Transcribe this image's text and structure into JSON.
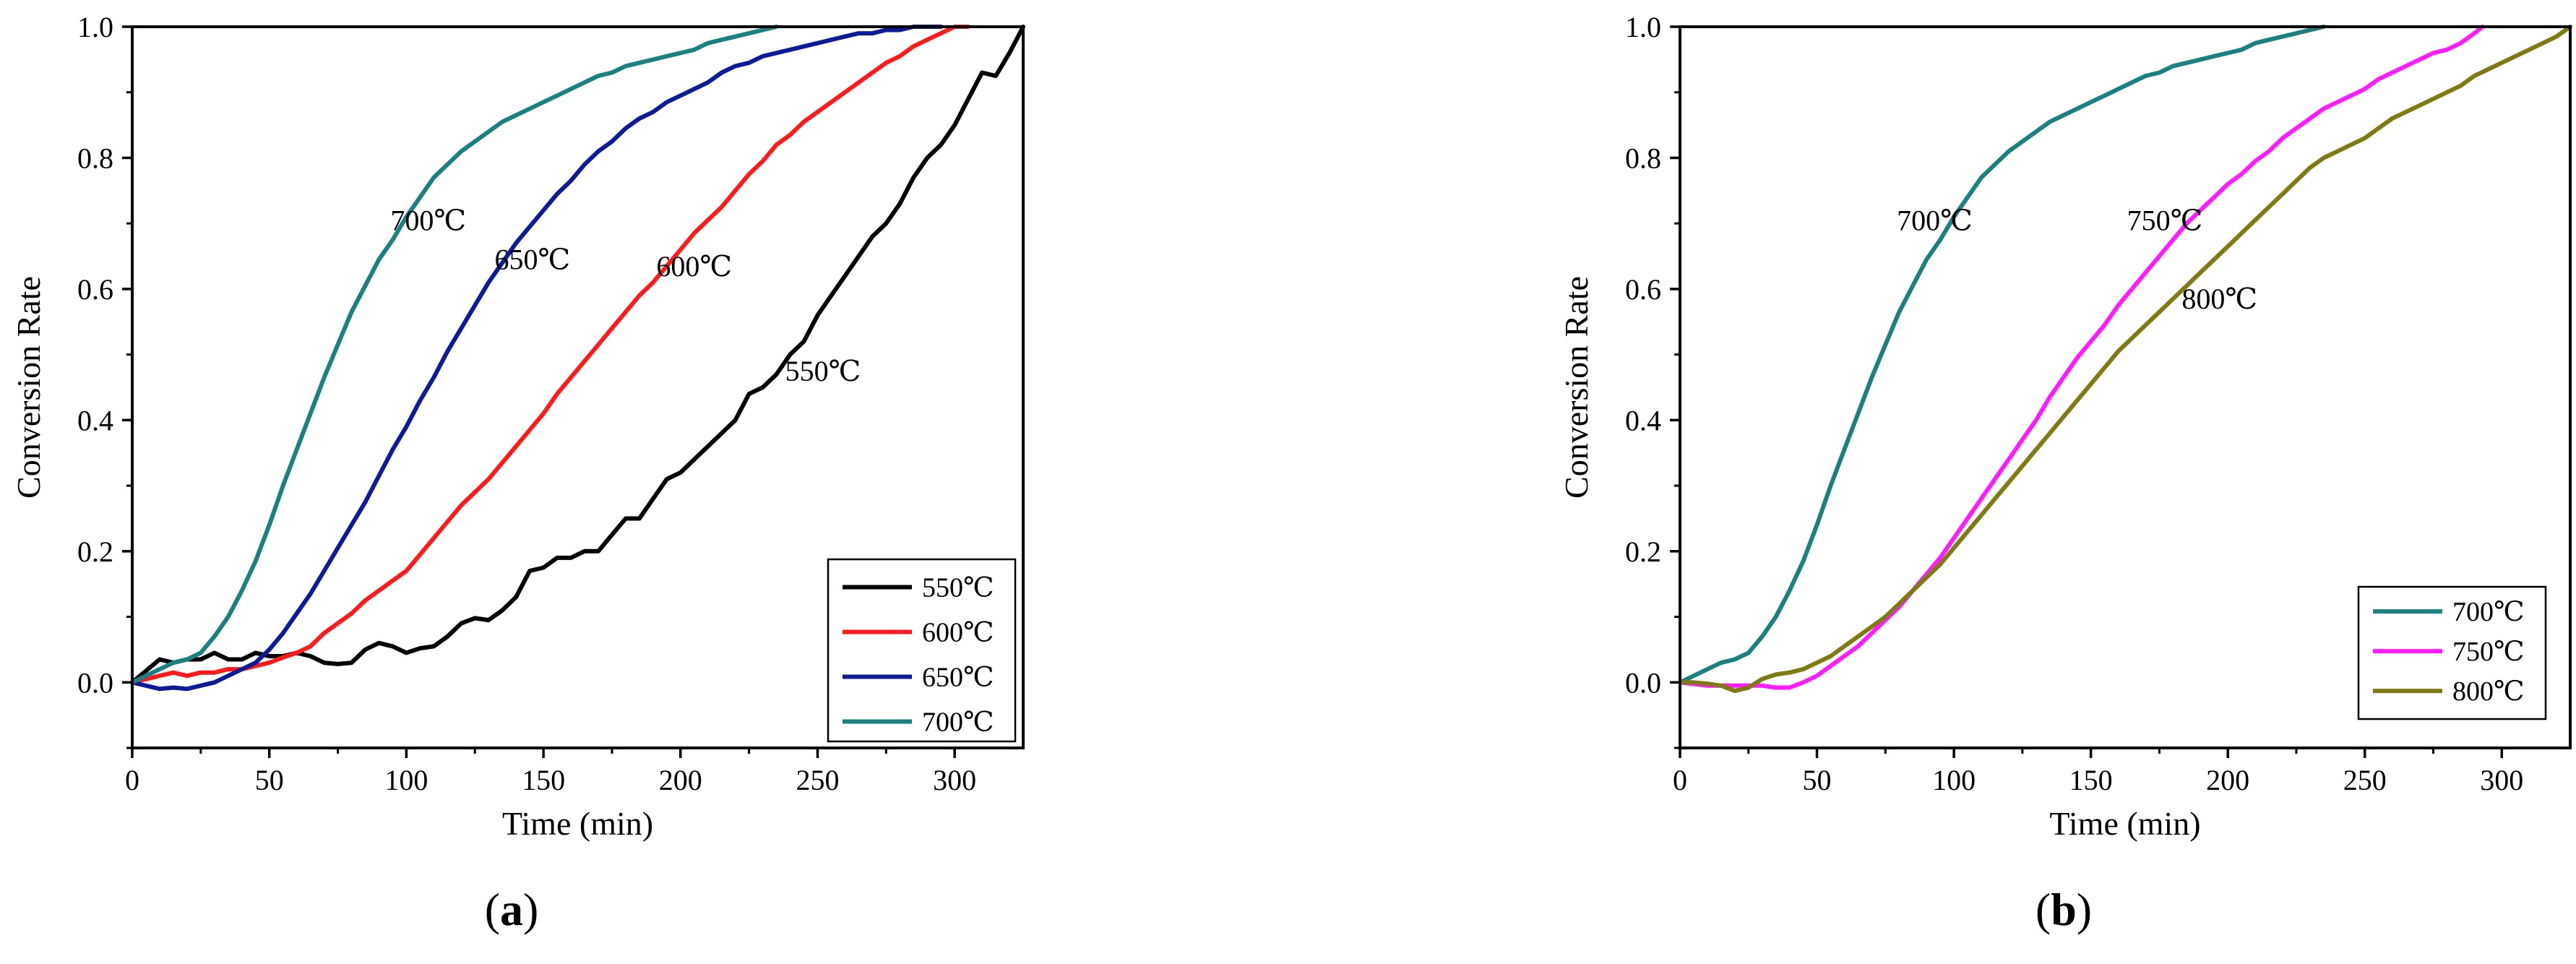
{
  "chart_data": [
    {
      "type": "line",
      "panel_label": "a",
      "title": "",
      "xlabel": "Time (min)",
      "ylabel": "Conversion Rate",
      "xlim": [
        0,
        325
      ],
      "ylim": [
        -0.1,
        1.0
      ],
      "xticks": [
        0,
        50,
        100,
        150,
        200,
        250,
        300
      ],
      "yticks": [
        0.0,
        0.2,
        0.4,
        0.6,
        0.8,
        1.0
      ],
      "xtick_labels": [
        "0",
        "50",
        "100",
        "150",
        "200",
        "250",
        "300"
      ],
      "ytick_labels": [
        "0.0",
        "0.2",
        "0.4",
        "0.6",
        "0.8",
        "1.0"
      ],
      "grid": false,
      "legend_position": "bottom-right",
      "series": [
        {
          "name": "550℃",
          "color": "#000000",
          "x": [
            0,
            10,
            15,
            20,
            25,
            30,
            35,
            40,
            45,
            50,
            55,
            60,
            65,
            70,
            75,
            80,
            85,
            90,
            95,
            100,
            105,
            110,
            115,
            120,
            125,
            130,
            135,
            140,
            145,
            150,
            155,
            160,
            165,
            170,
            175,
            180,
            185,
            190,
            195,
            200,
            205,
            210,
            215,
            220,
            225,
            230,
            235,
            240,
            245,
            250,
            255,
            260,
            265,
            270,
            275,
            280,
            285,
            290,
            295,
            300,
            305,
            310,
            315,
            320,
            325
          ],
          "y": [
            0.0,
            0.035,
            0.03,
            0.035,
            0.035,
            0.045,
            0.035,
            0.035,
            0.045,
            0.04,
            0.04,
            0.045,
            0.04,
            0.03,
            0.028,
            0.03,
            0.05,
            0.06,
            0.055,
            0.045,
            0.052,
            0.055,
            0.07,
            0.09,
            0.098,
            0.095,
            0.11,
            0.13,
            0.17,
            0.175,
            0.19,
            0.19,
            0.2,
            0.2,
            0.225,
            0.25,
            0.25,
            0.28,
            0.31,
            0.32,
            0.34,
            0.36,
            0.38,
            0.4,
            0.44,
            0.45,
            0.47,
            0.5,
            0.52,
            0.56,
            0.59,
            0.62,
            0.65,
            0.68,
            0.7,
            0.73,
            0.77,
            0.8,
            0.82,
            0.85,
            0.89,
            0.93,
            0.925,
            0.96,
            1.0
          ]
        },
        {
          "name": "600℃",
          "color": "#ff1a1a",
          "x": [
            0,
            10,
            15,
            20,
            25,
            30,
            35,
            40,
            45,
            50,
            55,
            60,
            65,
            70,
            75,
            80,
            85,
            90,
            95,
            100,
            105,
            110,
            115,
            120,
            125,
            130,
            135,
            140,
            145,
            150,
            155,
            160,
            165,
            170,
            175,
            180,
            185,
            190,
            195,
            200,
            205,
            210,
            215,
            220,
            225,
            230,
            235,
            240,
            245,
            250,
            255,
            260,
            265,
            270,
            275,
            280,
            285,
            290,
            295,
            300,
            305
          ],
          "y": [
            0.0,
            0.01,
            0.015,
            0.01,
            0.015,
            0.015,
            0.02,
            0.02,
            0.025,
            0.03,
            0.038,
            0.045,
            0.055,
            0.075,
            0.09,
            0.105,
            0.125,
            0.14,
            0.155,
            0.17,
            0.195,
            0.22,
            0.245,
            0.27,
            0.29,
            0.31,
            0.335,
            0.36,
            0.385,
            0.41,
            0.44,
            0.465,
            0.49,
            0.515,
            0.54,
            0.565,
            0.59,
            0.61,
            0.635,
            0.66,
            0.685,
            0.705,
            0.725,
            0.75,
            0.775,
            0.795,
            0.82,
            0.835,
            0.855,
            0.87,
            0.885,
            0.9,
            0.915,
            0.93,
            0.945,
            0.955,
            0.97,
            0.98,
            0.99,
            1.0,
            1.0
          ]
        },
        {
          "name": "650℃",
          "color": "#0d1a99",
          "x": [
            0,
            5,
            10,
            15,
            20,
            25,
            30,
            35,
            40,
            45,
            50,
            55,
            60,
            65,
            70,
            75,
            80,
            85,
            90,
            95,
            100,
            105,
            110,
            115,
            120,
            125,
            130,
            135,
            140,
            145,
            150,
            155,
            160,
            165,
            170,
            175,
            180,
            185,
            190,
            195,
            200,
            205,
            210,
            215,
            220,
            225,
            230,
            235,
            240,
            245,
            250,
            255,
            260,
            265,
            270,
            275,
            280,
            285,
            290,
            295
          ],
          "y": [
            0.0,
            -0.005,
            -0.01,
            -0.008,
            -0.01,
            -0.005,
            0.0,
            0.01,
            0.02,
            0.03,
            0.05,
            0.075,
            0.105,
            0.135,
            0.17,
            0.205,
            0.24,
            0.275,
            0.315,
            0.355,
            0.39,
            0.43,
            0.465,
            0.505,
            0.54,
            0.575,
            0.61,
            0.64,
            0.67,
            0.695,
            0.72,
            0.745,
            0.765,
            0.79,
            0.81,
            0.825,
            0.845,
            0.86,
            0.87,
            0.885,
            0.895,
            0.905,
            0.915,
            0.93,
            0.94,
            0.945,
            0.955,
            0.96,
            0.965,
            0.97,
            0.975,
            0.98,
            0.985,
            0.99,
            0.99,
            0.995,
            0.995,
            1.0,
            1.0,
            1.0
          ]
        },
        {
          "name": "700℃",
          "color": "#1a8080",
          "x": [
            0,
            5,
            10,
            15,
            20,
            25,
            30,
            35,
            40,
            45,
            50,
            55,
            60,
            65,
            70,
            75,
            80,
            85,
            90,
            95,
            100,
            105,
            110,
            115,
            120,
            125,
            130,
            135,
            140,
            145,
            150,
            155,
            160,
            165,
            170,
            175,
            180,
            185,
            190,
            195,
            200,
            205,
            210,
            215,
            220,
            225,
            230,
            235
          ],
          "y": [
            0.0,
            0.01,
            0.02,
            0.03,
            0.035,
            0.045,
            0.07,
            0.1,
            0.14,
            0.185,
            0.24,
            0.3,
            0.355,
            0.41,
            0.465,
            0.515,
            0.565,
            0.605,
            0.645,
            0.675,
            0.71,
            0.74,
            0.77,
            0.79,
            0.81,
            0.825,
            0.84,
            0.855,
            0.865,
            0.875,
            0.885,
            0.895,
            0.905,
            0.915,
            0.925,
            0.93,
            0.94,
            0.945,
            0.95,
            0.955,
            0.96,
            0.965,
            0.975,
            0.98,
            0.985,
            0.99,
            0.995,
            1.0
          ]
        }
      ],
      "annotations": [
        {
          "text": "700℃",
          "x": 108,
          "y": 0.69
        },
        {
          "text": "650℃",
          "x": 146,
          "y": 0.63
        },
        {
          "text": "600℃",
          "x": 205,
          "y": 0.62
        },
        {
          "text": "550℃",
          "x": 252,
          "y": 0.46
        }
      ]
    },
    {
      "type": "line",
      "panel_label": "b",
      "title": "",
      "xlabel": "Time (min)",
      "ylabel": "Conversion Rate",
      "xlim": [
        0,
        325
      ],
      "ylim": [
        -0.1,
        1.0
      ],
      "xticks": [
        0,
        50,
        100,
        150,
        200,
        250,
        300
      ],
      "yticks": [
        0.0,
        0.2,
        0.4,
        0.6,
        0.8,
        1.0
      ],
      "xtick_labels": [
        "0",
        "50",
        "100",
        "150",
        "200",
        "250",
        "300"
      ],
      "ytick_labels": [
        "0.0",
        "0.2",
        "0.4",
        "0.6",
        "0.8",
        "1.0"
      ],
      "grid": false,
      "legend_position": "bottom-right",
      "series": [
        {
          "name": "700℃",
          "color": "#1a8080",
          "x": [
            0,
            5,
            10,
            15,
            20,
            25,
            30,
            35,
            40,
            45,
            50,
            55,
            60,
            65,
            70,
            75,
            80,
            85,
            90,
            95,
            100,
            105,
            110,
            115,
            120,
            125,
            130,
            135,
            140,
            145,
            150,
            155,
            160,
            165,
            170,
            175,
            180,
            185,
            190,
            195,
            200,
            205,
            210,
            215,
            220,
            225,
            230,
            235
          ],
          "y": [
            0.0,
            0.01,
            0.02,
            0.03,
            0.035,
            0.045,
            0.07,
            0.1,
            0.14,
            0.185,
            0.24,
            0.3,
            0.355,
            0.41,
            0.465,
            0.515,
            0.565,
            0.605,
            0.645,
            0.675,
            0.71,
            0.74,
            0.77,
            0.79,
            0.81,
            0.825,
            0.84,
            0.855,
            0.865,
            0.875,
            0.885,
            0.895,
            0.905,
            0.915,
            0.925,
            0.93,
            0.94,
            0.945,
            0.95,
            0.955,
            0.96,
            0.965,
            0.975,
            0.98,
            0.985,
            0.99,
            0.995,
            1.0
          ]
        },
        {
          "name": "750℃",
          "color": "#ff1aff",
          "x": [
            0,
            10,
            20,
            30,
            35,
            40,
            45,
            50,
            55,
            60,
            65,
            70,
            75,
            80,
            85,
            90,
            95,
            100,
            105,
            110,
            115,
            120,
            125,
            130,
            135,
            140,
            145,
            150,
            155,
            160,
            165,
            170,
            175,
            180,
            185,
            190,
            195,
            200,
            205,
            210,
            215,
            220,
            225,
            230,
            235,
            240,
            245,
            250,
            255,
            260,
            265,
            270,
            275,
            280,
            285,
            290,
            293
          ],
          "y": [
            0.0,
            -0.005,
            -0.005,
            -0.005,
            -0.008,
            -0.008,
            0.0,
            0.01,
            0.025,
            0.04,
            0.055,
            0.075,
            0.095,
            0.115,
            0.14,
            0.165,
            0.19,
            0.22,
            0.25,
            0.28,
            0.31,
            0.34,
            0.37,
            0.4,
            0.435,
            0.465,
            0.495,
            0.52,
            0.545,
            0.575,
            0.6,
            0.625,
            0.65,
            0.675,
            0.7,
            0.72,
            0.74,
            0.76,
            0.775,
            0.795,
            0.81,
            0.83,
            0.845,
            0.86,
            0.875,
            0.885,
            0.895,
            0.905,
            0.92,
            0.93,
            0.94,
            0.95,
            0.96,
            0.965,
            0.975,
            0.99,
            1.0
          ]
        },
        {
          "name": "800℃",
          "color": "#807a12",
          "x": [
            0,
            5,
            10,
            15,
            20,
            25,
            30,
            35,
            40,
            45,
            50,
            55,
            60,
            65,
            70,
            75,
            80,
            85,
            90,
            95,
            100,
            105,
            110,
            115,
            120,
            125,
            130,
            135,
            140,
            145,
            150,
            155,
            160,
            165,
            170,
            175,
            180,
            185,
            190,
            195,
            200,
            205,
            210,
            215,
            220,
            225,
            230,
            235,
            240,
            245,
            250,
            255,
            260,
            265,
            270,
            275,
            280,
            285,
            290,
            295,
            300,
            305,
            310,
            315,
            320,
            325
          ],
          "y": [
            0.0,
            0.0,
            -0.002,
            -0.005,
            -0.013,
            -0.008,
            0.005,
            0.012,
            0.015,
            0.02,
            0.03,
            0.04,
            0.055,
            0.07,
            0.085,
            0.1,
            0.12,
            0.14,
            0.16,
            0.18,
            0.205,
            0.23,
            0.255,
            0.28,
            0.305,
            0.33,
            0.355,
            0.38,
            0.405,
            0.43,
            0.455,
            0.48,
            0.505,
            0.525,
            0.545,
            0.565,
            0.585,
            0.605,
            0.625,
            0.645,
            0.665,
            0.685,
            0.705,
            0.725,
            0.745,
            0.765,
            0.785,
            0.8,
            0.81,
            0.82,
            0.83,
            0.845,
            0.86,
            0.87,
            0.88,
            0.89,
            0.9,
            0.91,
            0.925,
            0.935,
            0.945,
            0.955,
            0.965,
            0.975,
            0.985,
            1.0
          ]
        }
      ],
      "annotations": [
        {
          "text": "700℃",
          "x": 93,
          "y": 0.69
        },
        {
          "text": "750℃",
          "x": 177,
          "y": 0.69
        },
        {
          "text": "800℃",
          "x": 197,
          "y": 0.57
        }
      ]
    }
  ]
}
